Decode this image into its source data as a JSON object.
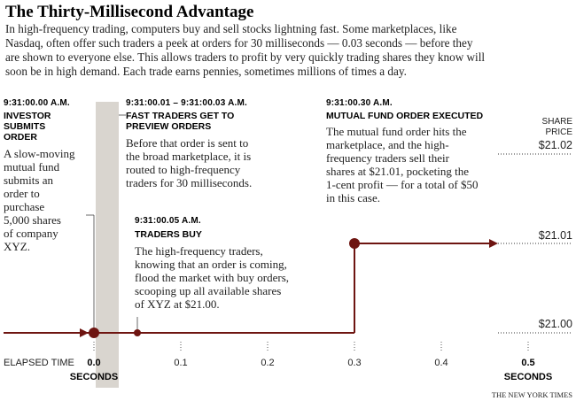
{
  "title": "The Thirty-Millisecond Advantage",
  "intro": [
    "In high-frequency trading, computers buy and sell stocks lightning fast. Some marketplaces, like",
    "Nasdaq, often offer such traders a peek at orders for 30 milliseconds — 0.03 seconds — before they",
    "are shown to everyone else. This allows traders to profit by very quickly trading shares they know will",
    "soon be in high demand. Each trade earns pennies, sometimes millions of times a day."
  ],
  "events": {
    "investor": {
      "time": "9:31:00.00 A.M.",
      "heading": [
        "INVESTOR",
        "SUBMITS",
        "ORDER"
      ],
      "body": [
        "A slow-moving",
        "mutual fund",
        "submits an",
        "order to",
        "purchase",
        "5,000 shares",
        "of company",
        "XYZ."
      ]
    },
    "preview": {
      "time": "9:31:00.01 – 9:31:00.03 A.M.",
      "heading": [
        "FAST TRADERS GET TO",
        "PREVIEW ORDERS"
      ],
      "body": [
        "Before that order is sent to",
        "the broad marketplace, it is",
        "routed to high-frequency",
        "traders for 30 milliseconds."
      ]
    },
    "buy": {
      "time": "9:31:00.05 A.M.",
      "heading": [
        "TRADERS BUY"
      ],
      "body": [
        "The high-frequency traders,",
        "knowing that an order is coming,",
        "flood the market with buy orders,",
        "scooping up all available shares",
        "of XYZ at $21.00."
      ]
    },
    "executed": {
      "time": "9:31:00.30 A.M.",
      "heading": [
        "MUTUAL FUND ORDER EXECUTED"
      ],
      "body": [
        "The mutual fund order hits the",
        "marketplace, and the high-",
        "frequency traders sell their",
        "shares at $21.01, pocketing the",
        "1-cent profit — for a total of $50",
        "in this case."
      ]
    }
  },
  "price_axis": {
    "label": [
      "SHARE",
      "PRICE"
    ],
    "ticks": [
      "$21.02",
      "$21.01",
      "$21.00"
    ]
  },
  "time_axis": {
    "label": "ELAPSED TIME",
    "ticks": [
      "0.0",
      "0.1",
      "0.2",
      "0.3",
      "0.4",
      "0.5"
    ],
    "unit": "SECONDS"
  },
  "credit": "THE NEW YORK TIMES",
  "colors": {
    "line": "#6e1511",
    "dot": "#6e1511",
    "shade": "#d9d5cf",
    "text": "#222222"
  }
}
